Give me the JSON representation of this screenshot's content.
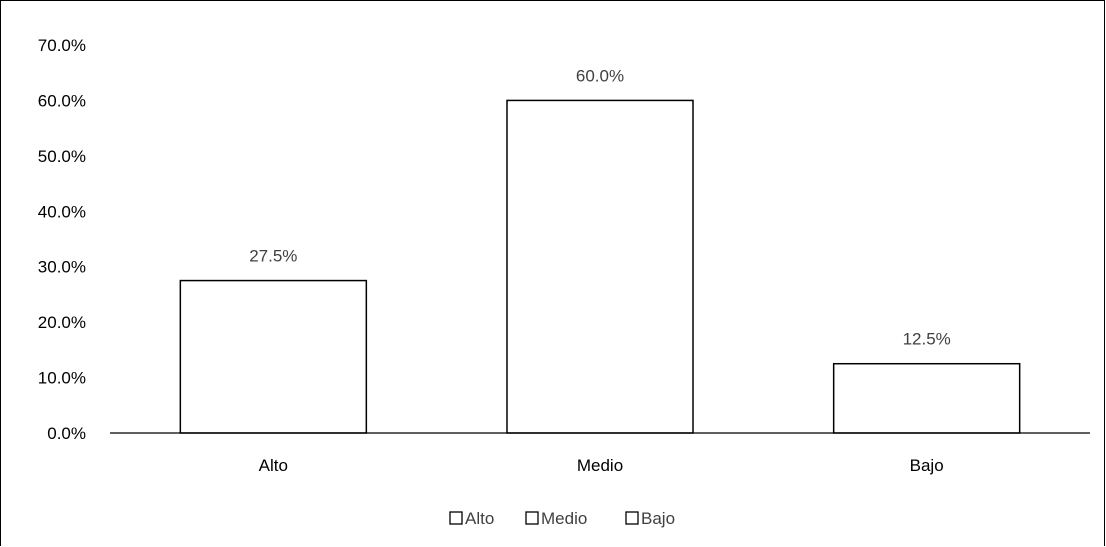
{
  "chart_data": {
    "type": "bar",
    "categories": [
      "Alto",
      "Medio",
      "Bajo"
    ],
    "values": [
      27.5,
      60.0,
      12.5
    ],
    "data_labels": [
      "27.5%",
      "60.0%",
      "12.5%"
    ],
    "ylim": [
      0,
      70
    ],
    "y_ticks": [
      0,
      10,
      20,
      30,
      40,
      50,
      60,
      70
    ],
    "y_tick_labels": [
      "0.0%",
      "10.0%",
      "20.0%",
      "30.0%",
      "40.0%",
      "50.0%",
      "60.0%",
      "70.0%"
    ],
    "grid": false,
    "bar_fill": "#ffffff",
    "bar_stroke": "#000000",
    "legend": {
      "placement": "bottom",
      "entries": [
        "Alto",
        "Medio",
        "Bajo"
      ]
    }
  }
}
